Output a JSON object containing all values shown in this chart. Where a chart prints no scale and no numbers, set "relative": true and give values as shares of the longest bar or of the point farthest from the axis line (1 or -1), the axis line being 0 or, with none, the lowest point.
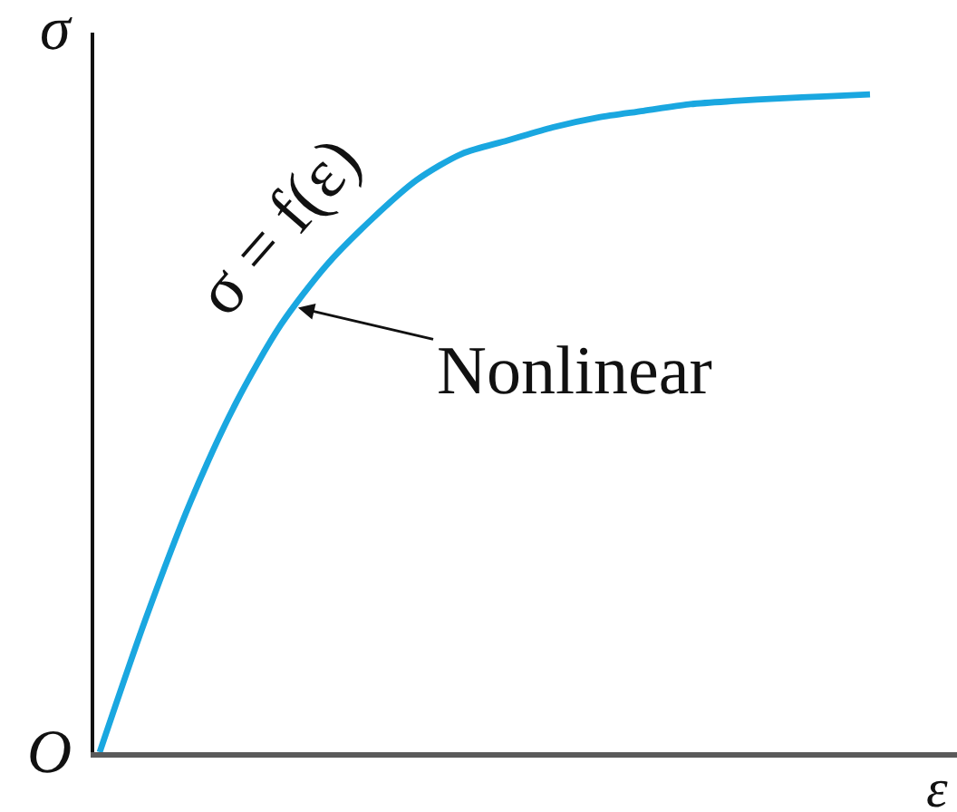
{
  "chart_data": {
    "type": "line",
    "xlabel": "ε",
    "ylabel": "σ",
    "relative": true,
    "annotations": [
      "σ = f(ε)",
      "Nonlinear",
      "O"
    ],
    "categories": [
      null,
      null,
      null,
      null,
      null,
      null,
      null,
      null,
      null,
      null,
      null,
      null,
      null,
      null,
      null,
      null,
      null,
      null
    ],
    "series": [
      {
        "color": "#1aa7e0",
        "values": [
          0,
          0.2,
          0.38,
          0.53,
          0.65,
          0.74,
          0.81,
          0.87,
          0.91,
          0.93,
          0.95,
          0.965,
          0.975,
          0.985,
          0.99,
          0.994,
          0.997,
          1
        ]
      }
    ]
  }
}
